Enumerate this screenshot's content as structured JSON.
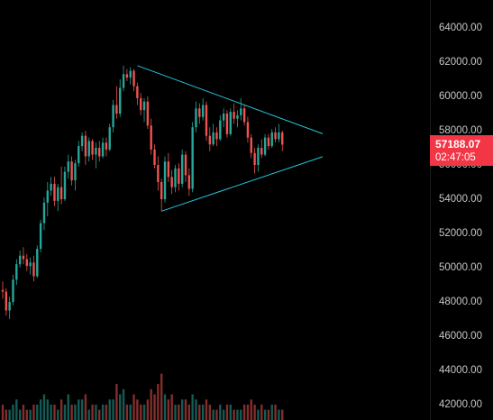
{
  "price_axis": {
    "ticks": [
      "64000.00",
      "62000.00",
      "60000.00",
      "58000.00",
      "56000.00",
      "54000.00",
      "52000.00",
      "50000.00",
      "48000.00",
      "46000.00",
      "44000.00",
      "42000.00"
    ],
    "tick_values": [
      64000,
      62000,
      60000,
      58000,
      56000,
      54000,
      52000,
      50000,
      48000,
      46000,
      44000,
      42000
    ]
  },
  "last_price": {
    "value": "57188.07",
    "countdown": "02:47:05",
    "color": "#f23645"
  },
  "colors": {
    "up": "#26a69a",
    "down": "#ef5350",
    "trendline": "#26c6da",
    "background": "#000000"
  },
  "drawing": {
    "type": "symmetrical-triangle",
    "upper_line": [
      [
        39,
        61800
      ],
      [
        93,
        57800
      ]
    ],
    "lower_line": [
      [
        46,
        53300
      ],
      [
        93,
        56500
      ]
    ]
  },
  "chart_data": {
    "type": "candlestick",
    "title": "",
    "ylim": [
      41500,
      65200
    ],
    "candles": [
      [
        48700,
        49200,
        48200,
        48600
      ],
      [
        48600,
        48800,
        47200,
        47500
      ],
      [
        47500,
        48300,
        47000,
        48000
      ],
      [
        48000,
        49600,
        47800,
        49300
      ],
      [
        49300,
        50500,
        49000,
        50200
      ],
      [
        50200,
        51000,
        50000,
        50700
      ],
      [
        50700,
        51200,
        50200,
        50500
      ],
      [
        50500,
        50800,
        49800,
        50100
      ],
      [
        50100,
        50600,
        49600,
        50300
      ],
      [
        50300,
        50700,
        49200,
        49500
      ],
      [
        49500,
        51300,
        49400,
        51100
      ],
      [
        51100,
        52800,
        50900,
        52600
      ],
      [
        52600,
        54100,
        52200,
        53800
      ],
      [
        53800,
        55000,
        53000,
        54500
      ],
      [
        54500,
        55300,
        54200,
        54900
      ],
      [
        54900,
        55300,
        53600,
        53900
      ],
      [
        53900,
        54900,
        53300,
        54700
      ],
      [
        54700,
        55900,
        53700,
        54000
      ],
      [
        54000,
        55900,
        53900,
        55600
      ],
      [
        55600,
        56600,
        55200,
        56200
      ],
      [
        56200,
        56500,
        54800,
        55100
      ],
      [
        55100,
        56300,
        54500,
        56100
      ],
      [
        56100,
        57400,
        55900,
        57100
      ],
      [
        57100,
        57900,
        56800,
        57700
      ],
      [
        57700,
        58000,
        56000,
        56500
      ],
      [
        56500,
        57600,
        56200,
        57400
      ],
      [
        57400,
        57500,
        56300,
        56600
      ],
      [
        56600,
        57300,
        55800,
        57000
      ],
      [
        57000,
        57400,
        56200,
        56500
      ],
      [
        56500,
        57600,
        56400,
        57300
      ],
      [
        57300,
        57600,
        56500,
        56900
      ],
      [
        56900,
        58400,
        56800,
        58200
      ],
      [
        58200,
        59800,
        57900,
        59500
      ],
      [
        59500,
        60600,
        58700,
        59000
      ],
      [
        59000,
        61000,
        58800,
        60500
      ],
      [
        60500,
        61800,
        60300,
        61300
      ],
      [
        61300,
        61600,
        60900,
        61100
      ],
      [
        61100,
        61700,
        60700,
        61500
      ],
      [
        61500,
        61600,
        60300,
        60600
      ],
      [
        60600,
        60800,
        59500,
        59900
      ],
      [
        59900,
        60200,
        58900,
        59200
      ],
      [
        59200,
        59900,
        58500,
        59700
      ],
      [
        59700,
        60000,
        58100,
        58300
      ],
      [
        58300,
        58700,
        56600,
        56900
      ],
      [
        56900,
        57200,
        55800,
        56000
      ],
      [
        56000,
        56500,
        54500,
        55000
      ],
      [
        55000,
        55200,
        53300,
        54000
      ],
      [
        54000,
        56500,
        53800,
        56200
      ],
      [
        56200,
        56700,
        55000,
        55300
      ],
      [
        55300,
        55700,
        54300,
        54700
      ],
      [
        54700,
        56000,
        54400,
        55800
      ],
      [
        55800,
        56100,
        54500,
        54900
      ],
      [
        54900,
        56900,
        54700,
        56600
      ],
      [
        56600,
        56800,
        55000,
        55400
      ],
      [
        55400,
        55800,
        54200,
        54600
      ],
      [
        54600,
        58500,
        54400,
        58200
      ],
      [
        58200,
        59700,
        57900,
        59300
      ],
      [
        59300,
        59600,
        58400,
        58800
      ],
      [
        58800,
        59900,
        58600,
        59500
      ],
      [
        59500,
        59700,
        57400,
        57700
      ],
      [
        57700,
        58200,
        56800,
        57200
      ],
      [
        57200,
        58400,
        57100,
        57900
      ],
      [
        57900,
        58200,
        57100,
        57500
      ],
      [
        57500,
        58900,
        57400,
        58600
      ],
      [
        58600,
        59300,
        58200,
        59000
      ],
      [
        59000,
        59200,
        57600,
        57800
      ],
      [
        57800,
        59300,
        57700,
        59100
      ],
      [
        59100,
        59600,
        58400,
        58700
      ],
      [
        58700,
        59200,
        58200,
        58900
      ],
      [
        58900,
        59900,
        58600,
        59300
      ],
      [
        59300,
        59500,
        58300,
        58500
      ],
      [
        58500,
        58800,
        57300,
        57600
      ],
      [
        57600,
        57800,
        56400,
        56700
      ],
      [
        56700,
        57000,
        55500,
        56000
      ],
      [
        56000,
        57200,
        55600,
        57000
      ],
      [
        57000,
        57500,
        56400,
        56600
      ],
      [
        56600,
        57800,
        56500,
        57600
      ],
      [
        57600,
        57800,
        56900,
        57100
      ],
      [
        57100,
        58100,
        57000,
        57900
      ],
      [
        57900,
        58200,
        57300,
        57500
      ],
      [
        57500,
        58400,
        57300,
        57900
      ],
      [
        57900,
        58000,
        56800,
        57188
      ]
    ],
    "volume": [
      3,
      2,
      2,
      3,
      4,
      2,
      3,
      2,
      2,
      3,
      3,
      4,
      5,
      4,
      3,
      3,
      2,
      4,
      3,
      5,
      3,
      3,
      4,
      4,
      5,
      2,
      3,
      3,
      2,
      3,
      3,
      4,
      4,
      7,
      5,
      6,
      3,
      3,
      5,
      4,
      3,
      3,
      4,
      6,
      5,
      7,
      9,
      5,
      4,
      5,
      3,
      3,
      4,
      4,
      3,
      5,
      4,
      3,
      3,
      4,
      3,
      2,
      2,
      3,
      2,
      3,
      3,
      2,
      2,
      2,
      3,
      3,
      4,
      3,
      2,
      3,
      2,
      2,
      3,
      3,
      2,
      2
    ]
  }
}
